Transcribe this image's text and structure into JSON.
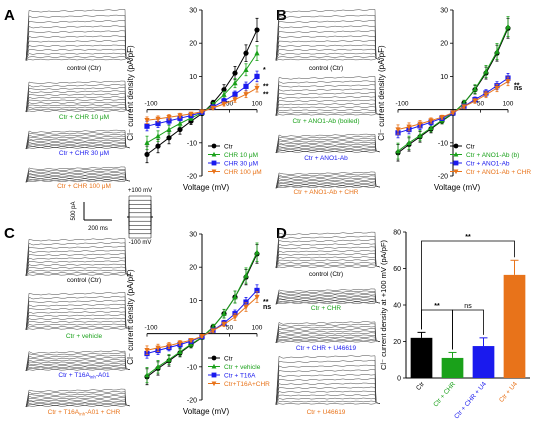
{
  "panels": {
    "A": {
      "letter": "A",
      "traces": [
        "control (Ctr)",
        "Ctr + CHR 10 μM",
        "Ctr + CHR 30 μM",
        "Ctr + CHR 100 μM"
      ],
      "trace_colors": [
        "#000000",
        "#1aa11a",
        "#1a1aee",
        "#e8731a"
      ],
      "chart": {
        "type": "line",
        "x": [
          -100,
          -80,
          -60,
          -40,
          -20,
          0,
          20,
          40,
          60,
          80,
          100
        ],
        "xticks": [
          -100,
          50,
          100
        ],
        "ylabel": "Cl⁻ current density (pA/pF)",
        "xlabel": "Voltage (mV)",
        "ylim": [
          -20,
          30
        ],
        "series": [
          {
            "name": "Ctr",
            "color": "#000000",
            "marker": "circle",
            "values": [
              -13.5,
              -11,
              -8.5,
              -6,
              -3.5,
              -1.2,
              2,
              6,
              11,
              17,
              24
            ],
            "err": [
              2.5,
              2,
              1.8,
              1.4,
              1,
              0.6,
              0.8,
              1.5,
              2,
              2.5,
              3.5
            ]
          },
          {
            "name": "CHR 10 μM",
            "color": "#1aa11a",
            "marker": "triangle",
            "values": [
              -10,
              -8,
              -6,
              -4.2,
              -2.5,
              -1,
              1.5,
              4.5,
              8,
              12,
              17
            ],
            "err": [
              2,
              1.6,
              1.3,
              1,
              0.8,
              0.5,
              0.6,
              1,
              1.4,
              1.8,
              2.2
            ]
          },
          {
            "name": "CHR 30 μM",
            "color": "#1a1aee",
            "marker": "square",
            "values": [
              -5,
              -4.2,
              -3.4,
              -2.6,
              -1.8,
              -0.8,
              0.8,
              2.6,
              4.6,
              7,
              10
            ],
            "err": [
              1.4,
              1.2,
              1,
              0.8,
              0.6,
              0.4,
              0.5,
              0.8,
              1,
              1.3,
              1.6
            ]
          },
          {
            "name": "CHR 100 μM",
            "color": "#e8731a",
            "marker": "tridown",
            "values": [
              -3.2,
              -2.8,
              -2.3,
              -1.8,
              -1.3,
              -0.6,
              0.5,
              1.7,
              3,
              4.6,
              6.5
            ],
            "err": [
              1,
              0.9,
              0.8,
              0.7,
              0.5,
              0.3,
              0.4,
              0.6,
              0.8,
              1,
              1.2
            ]
          }
        ],
        "annotations": [
          "*",
          "**",
          "**"
        ]
      }
    },
    "B": {
      "letter": "B",
      "traces": [
        "control (Ctr)",
        "Ctr + ANO1-Ab (boiled)",
        "Ctr + ANO1-Ab",
        "Ctr + ANO1-Ab + CHR"
      ],
      "trace_colors": [
        "#000000",
        "#1aa11a",
        "#1a1aee",
        "#e8731a"
      ],
      "chart": {
        "type": "line",
        "x": [
          -100,
          -80,
          -60,
          -40,
          -20,
          0,
          20,
          40,
          60,
          80,
          100
        ],
        "xticks": [
          -100,
          50,
          100
        ],
        "ylabel": "Cl⁻ current density (pA/pF)",
        "xlabel": "Voltage (mV)",
        "ylim": [
          -20,
          30
        ],
        "series": [
          {
            "name": "Ctr",
            "color": "#000000",
            "marker": "circle",
            "values": [
              -13,
              -10.5,
              -8.2,
              -5.8,
              -3.4,
              -1.2,
              2,
              6,
              11,
              17,
              24.5
            ],
            "err": [
              2.5,
              2,
              1.6,
              1.2,
              0.9,
              0.6,
              0.8,
              1.3,
              1.8,
              2.4,
              3
            ]
          },
          {
            "name": "Ctr + ANO1-Ab (b)",
            "color": "#1aa11a",
            "marker": "triangle",
            "values": [
              -12.5,
              -10,
              -7.8,
              -5.5,
              -3.2,
              -1.1,
              2,
              6.2,
              11.5,
              17.5,
              25
            ],
            "err": [
              2.4,
              2,
              1.6,
              1.2,
              0.9,
              0.6,
              0.8,
              1.3,
              1.8,
              2.4,
              3
            ]
          },
          {
            "name": "Ctr + ANO1-Ab",
            "color": "#1a1aee",
            "marker": "square",
            "values": [
              -7,
              -6,
              -4.9,
              -3.8,
              -2.6,
              -1,
              1,
              3,
              5,
              7.2,
              9.5
            ],
            "err": [
              1.5,
              1.3,
              1.1,
              0.9,
              0.7,
              0.4,
              0.5,
              0.8,
              1,
              1.2,
              1.4
            ]
          },
          {
            "name": "Ctr + ANO1-Ab + CHR",
            "color": "#e8731a",
            "marker": "tridown",
            "values": [
              -6,
              -5.2,
              -4.3,
              -3.3,
              -2.3,
              -0.9,
              0.9,
              2.6,
              4.5,
              6.5,
              8.5
            ],
            "err": [
              1.4,
              1.2,
              1,
              0.8,
              0.6,
              0.4,
              0.5,
              0.7,
              0.9,
              1.1,
              1.3
            ]
          }
        ],
        "annotations": [
          "**",
          "ns"
        ]
      }
    },
    "C": {
      "letter": "C",
      "traces": [
        "control (Ctr)",
        "Ctr + vehicle",
        "Ctr + T16A",
        "Ctr + T16A",
        "-A01 + CHR"
      ],
      "trace_sub": "inh",
      "trace_a01": "-A01",
      "trace_colors": [
        "#000000",
        "#1aa11a",
        "#1a1aee",
        "#e8731a"
      ],
      "protocol": {
        "scale_y": "500 pA",
        "scale_x": "200 ms",
        "v_top": "+100 mV",
        "v_bottom": "-100 mV"
      },
      "chart": {
        "type": "line",
        "x": [
          -100,
          -80,
          -60,
          -40,
          -20,
          0,
          20,
          40,
          60,
          80,
          100
        ],
        "xticks": [
          -100,
          50,
          100
        ],
        "ylabel": "Cl⁻ current density (pA/pF)",
        "xlabel": "Voltage (mV)",
        "ylim": [
          -20,
          30
        ],
        "series": [
          {
            "name": "Ctr",
            "color": "#000000",
            "marker": "circle",
            "values": [
              -13,
              -10.5,
              -8.2,
              -5.8,
              -3.4,
              -1.2,
              2,
              6,
              11,
              17,
              24
            ],
            "err": [
              2.4,
              2,
              1.6,
              1.2,
              0.9,
              0.6,
              0.8,
              1.3,
              1.8,
              2.3,
              2.8
            ]
          },
          {
            "name": "Ctr + vehicle",
            "color": "#1aa11a",
            "marker": "triangle",
            "values": [
              -12.5,
              -10,
              -7.8,
              -5.5,
              -3.2,
              -1.1,
              2,
              6,
              11,
              17.5,
              24.5
            ],
            "err": [
              2.3,
              1.9,
              1.5,
              1.2,
              0.9,
              0.6,
              0.8,
              1.3,
              1.8,
              2.3,
              2.8
            ]
          },
          {
            "name": "Ctr + T16A",
            "color": "#1a1aee",
            "marker": "square",
            "values": [
              -6,
              -5.1,
              -4.2,
              -3.3,
              -2.3,
              -0.9,
              1,
              3.2,
              6,
              9.5,
              13
            ],
            "err": [
              1.4,
              1.2,
              1,
              0.8,
              0.6,
              0.4,
              0.5,
              0.8,
              1.1,
              1.4,
              1.7
            ]
          },
          {
            "name": "Ctr+T16A+CHR",
            "color": "#e8731a",
            "marker": "tridown",
            "values": [
              -5,
              -4.3,
              -3.6,
              -2.8,
              -2,
              -0.8,
              0.9,
              2.8,
              5,
              8,
              11
            ],
            "err": [
              1.3,
              1.1,
              0.9,
              0.7,
              0.5,
              0.4,
              0.5,
              0.7,
              1,
              1.3,
              1.6
            ]
          }
        ],
        "annotations": [
          "**",
          "ns"
        ]
      }
    },
    "D": {
      "letter": "D",
      "traces": [
        "control (Ctr)",
        "Ctr + CHR",
        "Ctr + CHR + U46619",
        "Ctr + U46619"
      ],
      "trace_colors": [
        "#000000",
        "#1aa11a",
        "#1a1aee",
        "#e8731a"
      ],
      "chart": {
        "type": "bar",
        "categories": [
          "Ctr",
          "Ctr + CHR",
          "Ctr + CHR + U4",
          "Ctr + U4"
        ],
        "values": [
          22,
          11,
          17.5,
          56.5
        ],
        "err": [
          3,
          3,
          4.5,
          8
        ],
        "colors": [
          "#000000",
          "#1aa11a",
          "#1a1aee",
          "#e8731a"
        ],
        "ylabel": "Cl⁻ current density at +100 mV (pA/pF)",
        "ylim": [
          0,
          80
        ],
        "yticks": [
          0,
          20,
          40,
          60,
          80
        ],
        "annotations": [
          "**",
          "ns",
          "**"
        ]
      }
    }
  }
}
